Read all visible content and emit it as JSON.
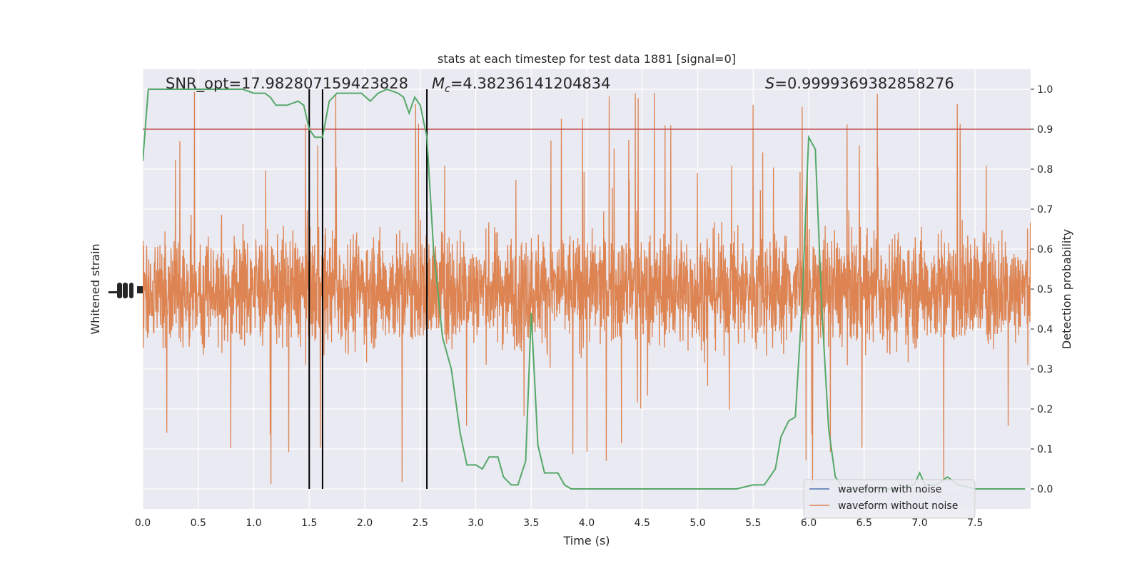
{
  "chart_data": {
    "type": "line",
    "title": "stats at each timestep for test data 1881 [signal=0]",
    "xlabel": "Time (s)",
    "ylabel_left": "Whitened strain",
    "ylabel_right": "Detection probability",
    "xlim": [
      0.0,
      8.0
    ],
    "ylim_right": [
      -0.05,
      1.05
    ],
    "x_ticks": [
      0.0,
      0.5,
      1.0,
      1.5,
      2.0,
      2.5,
      3.0,
      3.5,
      4.0,
      4.5,
      5.0,
      5.5,
      6.0,
      6.5,
      7.0,
      7.5
    ],
    "x_tick_labels": [
      "0.0",
      "0.5",
      "1.0",
      "1.5",
      "2.0",
      "2.5",
      "3.0",
      "3.5",
      "4.0",
      "4.5",
      "5.0",
      "5.5",
      "6.0",
      "6.5",
      "7.0",
      "7.5"
    ],
    "y_right_ticks": [
      0.0,
      0.1,
      0.2,
      0.3,
      0.4,
      0.5,
      0.6,
      0.7,
      0.8,
      0.9,
      1.0
    ],
    "y_right_tick_labels": [
      "0.0",
      "0.1",
      "0.2",
      "0.3",
      "0.4",
      "0.5",
      "0.6",
      "0.7",
      "0.8",
      "0.9",
      "1.0"
    ],
    "grid": true,
    "annotations": {
      "snr": "SNR_opt=17.982807159423828",
      "mc_symbol": "M",
      "mc_sub": "c",
      "mc_value": "=4.38236141204834",
      "s_symbol": "S",
      "s_value": "=0.9999369382858276"
    },
    "threshold": {
      "y": 0.9,
      "color": "#c44e52"
    },
    "vertical_lines": [
      1.5,
      1.62,
      2.56
    ],
    "legend": {
      "position": "lower-right",
      "entries": [
        {
          "label": "waveform with noise",
          "color": "#4c72b0"
        },
        {
          "label": "waveform without noise",
          "color": "#dd8452"
        }
      ]
    },
    "strain_series": {
      "name": "waveform without noise",
      "color": "#dd8452",
      "envelope_typical": 0.22,
      "spike_max": 0.5
    },
    "probability_series": {
      "color": "#55a868",
      "x": [
        0.0,
        0.05,
        0.1,
        0.2,
        0.3,
        0.4,
        0.5,
        0.6,
        0.7,
        0.8,
        0.9,
        1.0,
        1.1,
        1.15,
        1.2,
        1.25,
        1.3,
        1.4,
        1.45,
        1.5,
        1.55,
        1.62,
        1.68,
        1.75,
        1.82,
        1.9,
        1.97,
        2.05,
        2.12,
        2.2,
        2.3,
        2.35,
        2.4,
        2.45,
        2.5,
        2.56,
        2.62,
        2.7,
        2.78,
        2.86,
        2.92,
        3.0,
        3.06,
        3.12,
        3.2,
        3.25,
        3.32,
        3.38,
        3.45,
        3.5,
        3.56,
        3.62,
        3.68,
        3.74,
        3.8,
        3.86,
        3.95,
        4.1,
        4.3,
        4.5,
        4.7,
        4.9,
        5.05,
        5.2,
        5.35,
        5.5,
        5.6,
        5.7,
        5.75,
        5.82,
        5.88,
        5.94,
        6.0,
        6.06,
        6.12,
        6.18,
        6.24,
        6.32,
        6.45,
        6.6,
        6.8,
        6.95,
        7.0,
        7.05,
        7.15,
        7.25,
        7.35,
        7.5,
        7.7,
        7.9,
        7.95
      ],
      "y": [
        0.82,
        1.0,
        1.0,
        1.0,
        1.0,
        1.0,
        1.0,
        1.0,
        1.0,
        1.0,
        1.0,
        0.99,
        0.99,
        0.98,
        0.96,
        0.96,
        0.96,
        0.97,
        0.96,
        0.9,
        0.88,
        0.88,
        0.97,
        0.99,
        0.99,
        0.99,
        0.99,
        0.97,
        0.99,
        1.0,
        0.99,
        0.98,
        0.94,
        0.98,
        0.96,
        0.88,
        0.6,
        0.38,
        0.3,
        0.14,
        0.06,
        0.06,
        0.05,
        0.08,
        0.08,
        0.03,
        0.01,
        0.01,
        0.07,
        0.44,
        0.11,
        0.04,
        0.04,
        0.04,
        0.01,
        0.0,
        0.0,
        0.0,
        0.0,
        0.0,
        0.0,
        0.0,
        0.0,
        0.0,
        0.0,
        0.01,
        0.01,
        0.05,
        0.13,
        0.17,
        0.18,
        0.46,
        0.88,
        0.85,
        0.44,
        0.15,
        0.03,
        0.0,
        0.0,
        0.0,
        0.0,
        0.01,
        0.04,
        0.01,
        0.01,
        0.03,
        0.01,
        0.0,
        0.0,
        0.0,
        0.0
      ]
    }
  }
}
